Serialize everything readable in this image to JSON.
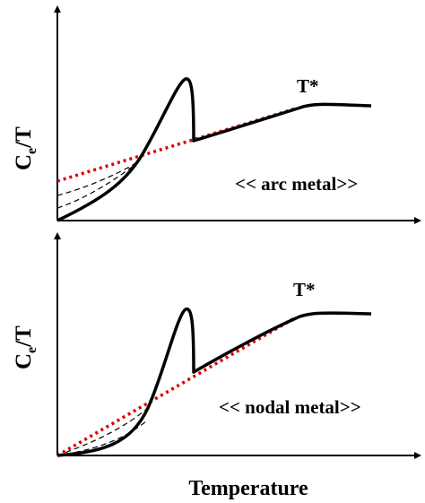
{
  "panels": [
    {
      "id": "arc",
      "ylabel_main": "C",
      "ylabel_sub": "e",
      "ylabel_tail": "/T",
      "annotation": "T*",
      "legend": "<< arc metal>>",
      "shape": "arc"
    },
    {
      "id": "nodal",
      "ylabel_main": "C",
      "ylabel_sub": "e",
      "ylabel_tail": "/T",
      "annotation": "T*",
      "legend": "<< nodal metal>>",
      "shape": "nodal"
    }
  ],
  "xlabel": "Temperature",
  "colors": {
    "curve": "#000000",
    "normal_state": "#dd0000",
    "dashed": "#000000"
  },
  "chart_data": [
    {
      "type": "line",
      "title": "<< arc metal>>",
      "xlabel": "",
      "ylabel": "Ce/T",
      "grid": false,
      "annotations": [
        "T*"
      ],
      "series": [
        {
          "style": "solid-black"
        },
        {
          "style": "dotted-red"
        },
        {
          "style": "dashed-black"
        }
      ]
    },
    {
      "type": "line",
      "title": "<< nodal metal>>",
      "xlabel": "Temperature",
      "ylabel": "Ce/T",
      "grid": false,
      "annotations": [
        "T*"
      ],
      "series": [
        {
          "style": "solid-black"
        },
        {
          "style": "dotted-red"
        },
        {
          "style": "dashed-black"
        }
      ]
    }
  ]
}
